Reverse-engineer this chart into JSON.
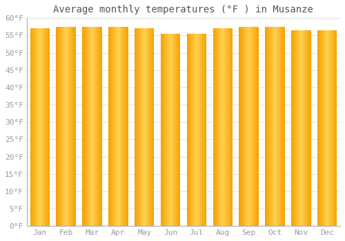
{
  "title": "Average monthly temperatures (°F ) in Musanze",
  "categories": [
    "Jan",
    "Feb",
    "Mar",
    "Apr",
    "May",
    "Jun",
    "Jul",
    "Aug",
    "Sep",
    "Oct",
    "Nov",
    "Dec"
  ],
  "values": [
    57.0,
    57.5,
    57.5,
    57.5,
    57.0,
    55.5,
    55.4,
    57.0,
    57.5,
    57.5,
    56.5,
    56.5
  ],
  "bar_color_center": "#FFD050",
  "bar_color_edge": "#F5A000",
  "background_color": "#FFFFFF",
  "plot_bg_color": "#FFFFFF",
  "grid_color": "#DDDDDD",
  "ylim": [
    0,
    60
  ],
  "ytick_step": 5,
  "title_fontsize": 10,
  "tick_fontsize": 8,
  "tick_color": "#999999",
  "title_color": "#555555",
  "bar_width": 0.75
}
